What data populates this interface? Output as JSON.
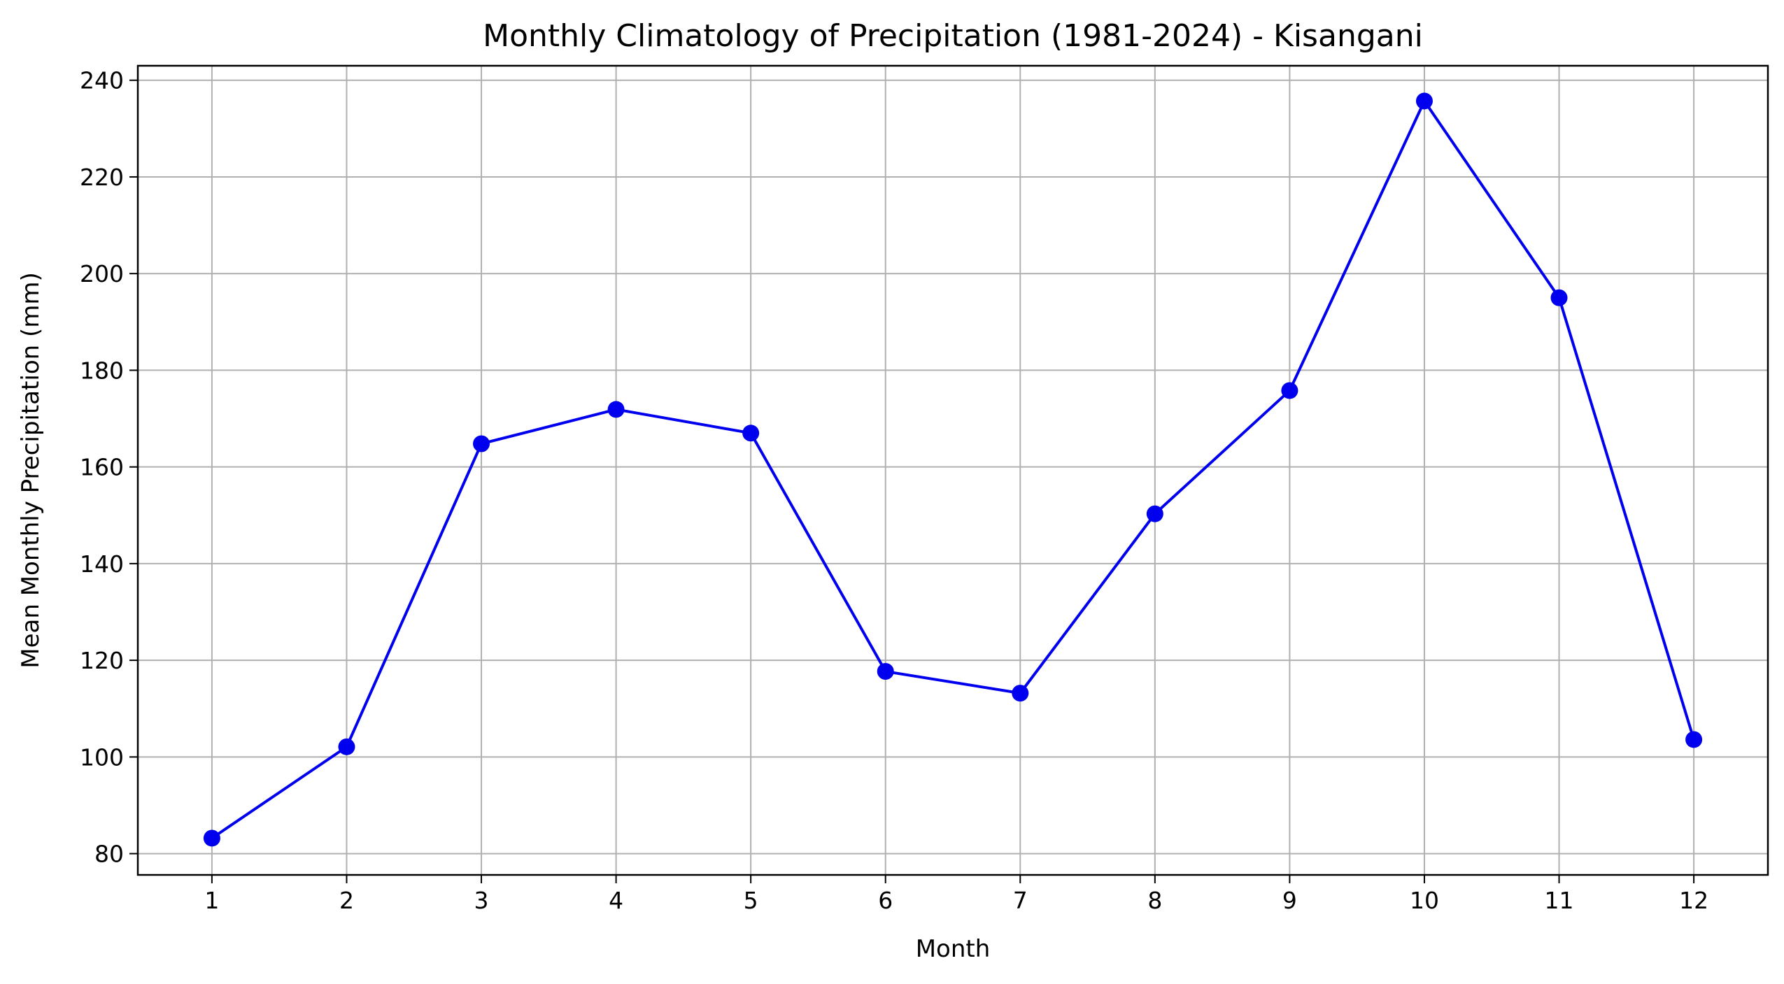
{
  "chart_data": {
    "type": "line",
    "title": "Monthly Climatology of Precipitation (1981-2024) - Kisangani",
    "xlabel": "Month",
    "ylabel": "Mean Monthly Precipitation (mm)",
    "categories": [
      "1",
      "2",
      "3",
      "4",
      "5",
      "6",
      "7",
      "8",
      "9",
      "10",
      "11",
      "12"
    ],
    "x": [
      1,
      2,
      3,
      4,
      5,
      6,
      7,
      8,
      9,
      10,
      11,
      12
    ],
    "series": [
      {
        "values": [
          83.2,
          102.1,
          164.8,
          171.9,
          167.0,
          117.7,
          113.2,
          150.3,
          175.8,
          235.7,
          195.0,
          103.6
        ],
        "color": "#0000ee",
        "marker": "circle"
      }
    ],
    "xlim": [
      0.45,
      12.55
    ],
    "ylim": [
      75.6,
      243.0
    ],
    "yticks": [
      80,
      100,
      120,
      140,
      160,
      180,
      200,
      220,
      240
    ],
    "grid": true,
    "colors": {
      "line": "#0000ee",
      "grid": "#b0b0b0",
      "axes": "#000000"
    }
  }
}
